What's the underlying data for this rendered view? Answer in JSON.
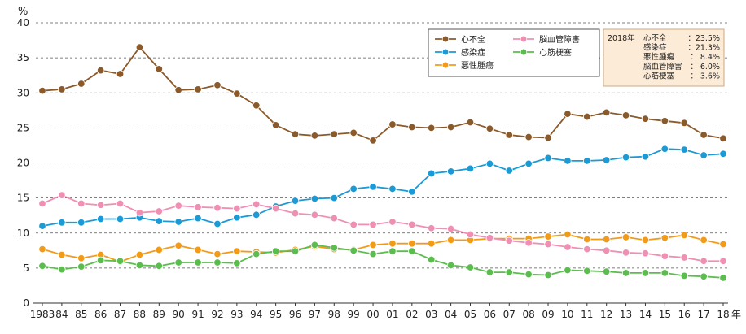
{
  "chart_data": {
    "type": "line",
    "ylabel": "%",
    "xunit": "年",
    "ylim": [
      0,
      40
    ],
    "yticks": [
      0,
      5,
      10,
      15,
      20,
      25,
      30,
      35,
      40
    ],
    "grid": "horizontal dashed",
    "categories": [
      "1983",
      "84",
      "85",
      "86",
      "87",
      "88",
      "89",
      "90",
      "91",
      "92",
      "93",
      "94",
      "95",
      "96",
      "97",
      "98",
      "99",
      "00",
      "01",
      "02",
      "03",
      "04",
      "05",
      "06",
      "07",
      "08",
      "09",
      "10",
      "11",
      "12",
      "13",
      "14",
      "15",
      "16",
      "17",
      "18"
    ],
    "series": [
      {
        "name": "心不全",
        "color": "#8b5a2b",
        "values": [
          30.3,
          30.5,
          31.3,
          33.2,
          32.7,
          36.5,
          33.4,
          30.4,
          30.5,
          31.1,
          29.9,
          28.2,
          25.4,
          24.1,
          23.9,
          24.1,
          24.3,
          23.2,
          25.5,
          25.1,
          25.0,
          25.1,
          25.8,
          24.9,
          24.0,
          23.7,
          23.6,
          27.0,
          26.6,
          27.2,
          26.8,
          26.3,
          26.0,
          25.7,
          24.0,
          23.5
        ]
      },
      {
        "name": "感染症",
        "color": "#1b9ad6",
        "values": [
          11.0,
          11.5,
          11.5,
          12.0,
          12.0,
          12.2,
          11.7,
          11.6,
          12.1,
          11.3,
          12.2,
          12.6,
          13.8,
          14.6,
          14.9,
          15.0,
          16.3,
          16.6,
          16.3,
          15.9,
          18.5,
          18.8,
          19.2,
          19.9,
          18.9,
          19.9,
          20.7,
          20.3,
          20.3,
          20.4,
          20.8,
          20.9,
          22.0,
          21.9,
          21.1,
          21.3
        ]
      },
      {
        "name": "悪性腫瘍",
        "color": "#f29b19",
        "values": [
          7.7,
          6.9,
          6.4,
          6.9,
          5.9,
          6.9,
          7.6,
          8.2,
          7.6,
          7.0,
          7.4,
          7.3,
          7.2,
          7.6,
          8.1,
          7.7,
          7.6,
          8.3,
          8.5,
          8.5,
          8.5,
          9.0,
          9.0,
          9.2,
          9.2,
          9.2,
          9.5,
          9.8,
          9.1,
          9.1,
          9.4,
          9.0,
          9.3,
          9.7,
          9.0,
          8.4
        ]
      },
      {
        "name": "脳血管障害",
        "color": "#ef8fb3",
        "values": [
          14.2,
          15.4,
          14.2,
          14.0,
          14.2,
          12.9,
          13.1,
          13.9,
          13.7,
          13.6,
          13.5,
          14.1,
          13.5,
          12.8,
          12.6,
          12.1,
          11.2,
          11.2,
          11.6,
          11.2,
          10.7,
          10.6,
          9.8,
          9.3,
          8.9,
          8.6,
          8.4,
          8.0,
          7.7,
          7.5,
          7.2,
          7.1,
          6.7,
          6.5,
          6.0,
          6.0
        ]
      },
      {
        "name": "心筋梗塞",
        "color": "#5cbd4f",
        "values": [
          5.3,
          4.8,
          5.2,
          6.1,
          6.0,
          5.4,
          5.3,
          5.8,
          5.8,
          5.8,
          5.7,
          7.0,
          7.4,
          7.4,
          8.3,
          7.9,
          7.5,
          7.0,
          7.4,
          7.4,
          6.2,
          5.4,
          5.1,
          4.4,
          4.4,
          4.1,
          4.0,
          4.7,
          4.6,
          4.5,
          4.3,
          4.3,
          4.3,
          3.9,
          3.8,
          3.6
        ]
      }
    ],
    "legend": {
      "placement": "top-right",
      "order": [
        "心不全",
        "脳血管障害",
        "感染症",
        "心筋梗塞",
        "悪性腫瘍"
      ]
    },
    "annotation": {
      "year_label": "2018年",
      "rows": [
        {
          "label": "心不全",
          "value": "：23.5%"
        },
        {
          "label": "感染症",
          "value": "：21.3%"
        },
        {
          "label": "悪性腫瘍",
          "value": "：  8.4%"
        },
        {
          "label": "脳血管障害",
          "value": "：  6.0%"
        },
        {
          "label": "心筋梗塞",
          "value": "：  3.6%"
        }
      ],
      "background": "#fcebd7",
      "border": "#c8a27a"
    }
  }
}
